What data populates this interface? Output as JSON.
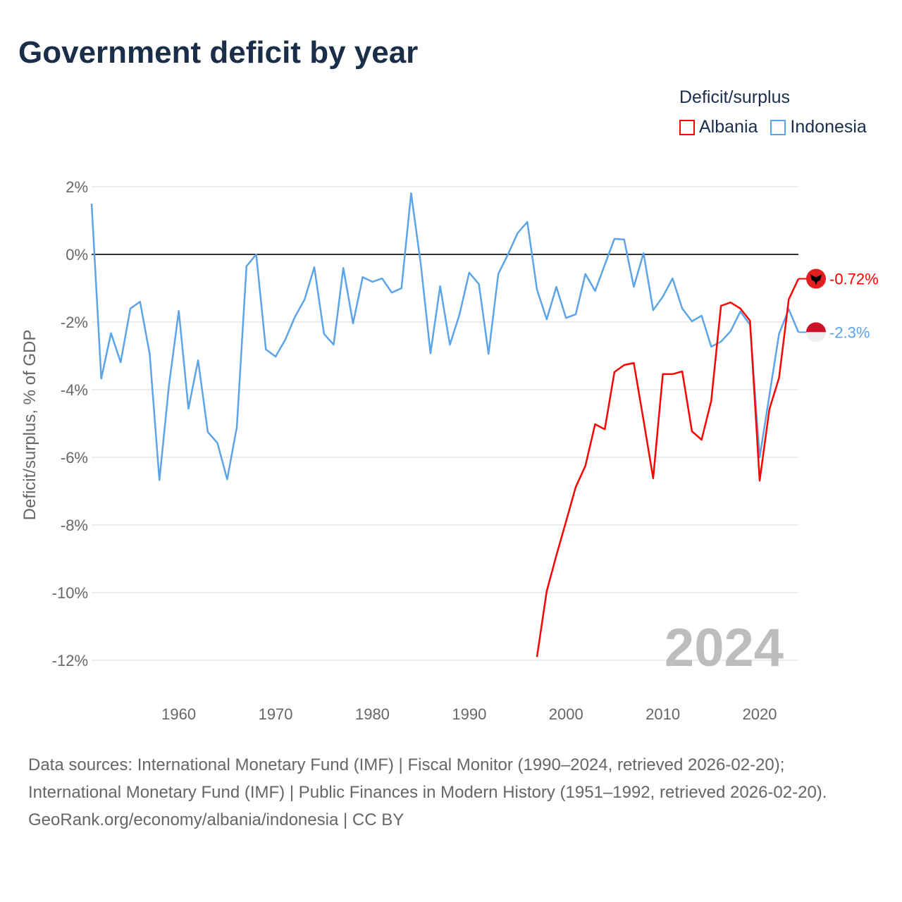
{
  "title": "Government deficit by year",
  "legend": {
    "title": "Deficit/surplus",
    "items": [
      {
        "label": "Albania",
        "color": "#ff0000"
      },
      {
        "label": "Indonesia",
        "color": "#5ba4e8"
      }
    ]
  },
  "footer": {
    "sources": "Data sources: International Monetary Fund (IMF) | Fiscal Monitor (1990–2024, retrieved 2026-02-20); International Monetary Fund (IMF) | Public Finances in Modern History (1951–1992, retrieved 2026-02-20).",
    "credit": "GeoRank.org/economy/albania/indonesia | CC BY"
  },
  "chart_data": {
    "type": "line",
    "title": "Government deficit by year",
    "ylabel": "Deficit/surplus, % of GDP",
    "xlabel": "",
    "xlim": [
      1951,
      2024
    ],
    "ylim": [
      -12,
      2
    ],
    "yticks": [
      2,
      0,
      -2,
      -4,
      -6,
      -8,
      -10,
      -12
    ],
    "ytick_labels": [
      "2%",
      "0%",
      "-2%",
      "-4%",
      "-6%",
      "-8%",
      "-10%",
      "-12%"
    ],
    "xticks": [
      1960,
      1970,
      1980,
      1990,
      2000,
      2010,
      2020
    ],
    "xtick_labels": [
      "1960",
      "1970",
      "1980",
      "1990",
      "2000",
      "2010",
      "2020"
    ],
    "year_watermark": "2024",
    "series": [
      {
        "name": "Albania",
        "color": "#ff0000",
        "end_label": "-0.72%",
        "start": 1997,
        "values": [
          -11.9,
          -9.96,
          -8.9,
          -7.9,
          -6.88,
          -6.25,
          -5.02,
          -5.17,
          -3.48,
          -3.27,
          -3.21,
          -4.9,
          -6.62,
          -3.54,
          -3.54,
          -3.46,
          -5.23,
          -5.48,
          -4.33,
          -1.52,
          -1.42,
          -1.6,
          -1.96,
          -6.69,
          -4.58,
          -3.65,
          -1.33,
          -0.72
        ]
      },
      {
        "name": "Indonesia",
        "color": "#5ba4e8",
        "end_label": "-2.3%",
        "start": 1951,
        "values": [
          1.5,
          -3.67,
          -2.33,
          -3.19,
          -1.6,
          -1.4,
          -2.94,
          -6.67,
          -3.85,
          -1.67,
          -4.56,
          -3.13,
          -5.25,
          -5.58,
          -6.65,
          -5.1,
          -0.35,
          0,
          -2.81,
          -3.02,
          -2.52,
          -1.85,
          -1.33,
          -0.38,
          -2.35,
          -2.67,
          -0.4,
          -2.04,
          -0.67,
          -0.81,
          -0.71,
          -1.13,
          -1.0,
          1.81,
          -0.3,
          -2.92,
          -0.94,
          -2.67,
          -1.77,
          -0.54,
          -0.88,
          -2.94,
          -0.58,
          0.0,
          0.63,
          0.96,
          -1.04,
          -1.92,
          -0.96,
          -1.88,
          -1.77,
          -0.58,
          -1.08,
          -0.31,
          0.46,
          0.44,
          -0.96,
          0.04,
          -1.65,
          -1.25,
          -0.71,
          -1.6,
          -1.98,
          -1.81,
          -2.73,
          -2.58,
          -2.27,
          -1.69,
          -2.08,
          -6.0,
          -4.17,
          -2.35,
          -1.62,
          -2.3
        ]
      }
    ]
  }
}
